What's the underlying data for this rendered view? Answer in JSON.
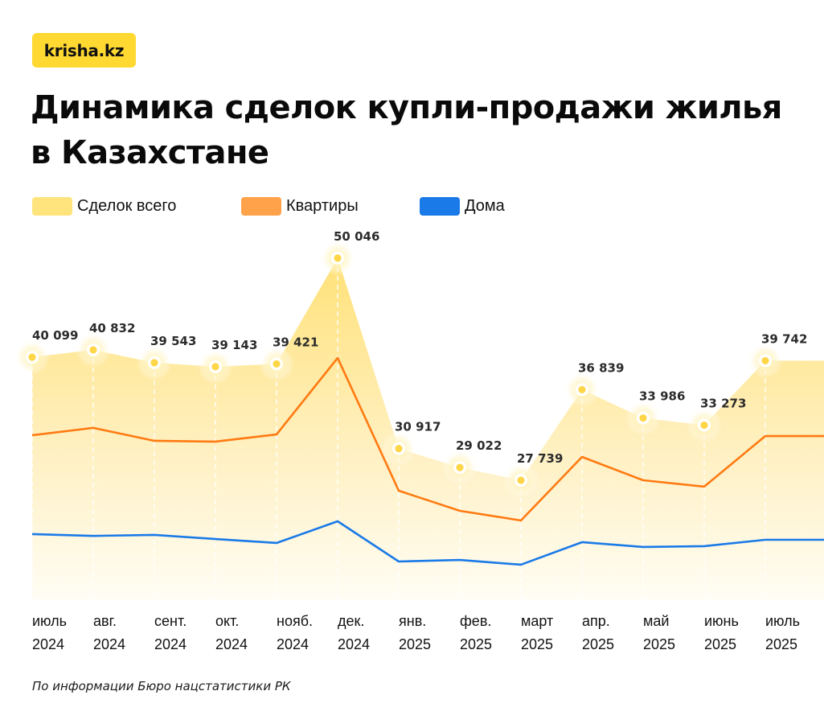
{
  "brand": {
    "logo_text": "krisha.kz",
    "logo_color": "#ffd932"
  },
  "header": {
    "title_line1": "Динамика сделок купли-продажи жилья",
    "title_line2": "в Казахстане"
  },
  "legend": [
    {
      "label": "Сделок всего",
      "color": "#ffe37d"
    },
    {
      "label": "Квартиры",
      "color": "#ffa24a"
    },
    {
      "label": "Дома",
      "color": "#1a7ae8"
    }
  ],
  "footnote": "По информации Бюро нацстатистики РК",
  "chart_data": {
    "type": "area",
    "title": "Динамика сделок купли-продажи жилья в Казахстане",
    "xlabel": "",
    "ylabel": "",
    "grid": false,
    "legend_position": "top-left",
    "categories": [
      {
        "month": "июль",
        "year": "2024"
      },
      {
        "month": "авг.",
        "year": "2024"
      },
      {
        "month": "сент.",
        "year": "2024"
      },
      {
        "month": "окт.",
        "year": "2024"
      },
      {
        "month": "нояб.",
        "year": "2024"
      },
      {
        "month": "дек.",
        "year": "2024"
      },
      {
        "month": "янв.",
        "year": "2025"
      },
      {
        "month": "фев.",
        "year": "2025"
      },
      {
        "month": "март",
        "year": "2025"
      },
      {
        "month": "апр.",
        "year": "2025"
      },
      {
        "month": "май",
        "year": "2025"
      },
      {
        "month": "июнь",
        "year": "2025"
      },
      {
        "month": "июль",
        "year": "2025"
      }
    ],
    "ylim": [
      14000,
      52000
    ],
    "series": [
      {
        "name": "Сделок всего",
        "type": "area",
        "color": "#ffd94a",
        "values": [
          40099,
          40832,
          39543,
          39143,
          39421,
          50046,
          30917,
          29022,
          27739,
          36839,
          33986,
          33273,
          39742
        ],
        "labels": [
          "40 099",
          "40 832",
          "39 543",
          "39 143",
          "39 421",
          "50 046",
          "30 917",
          "29 022",
          "27 739",
          "36 839",
          "33 986",
          "33 273",
          "39 742"
        ]
      },
      {
        "name": "Квартиры",
        "type": "line",
        "color": "#ff7a12",
        "approximate": true,
        "values": [
          32260,
          33000,
          31700,
          31620,
          32340,
          40020,
          26690,
          24670,
          23700,
          30080,
          27740,
          27100,
          32180
        ]
      },
      {
        "name": "Дома",
        "type": "line",
        "color": "#1a7ae8",
        "approximate": true,
        "values": [
          22330,
          22150,
          22250,
          21840,
          21440,
          23620,
          19580,
          19740,
          19260,
          21520,
          21040,
          21120,
          21760
        ]
      }
    ]
  }
}
